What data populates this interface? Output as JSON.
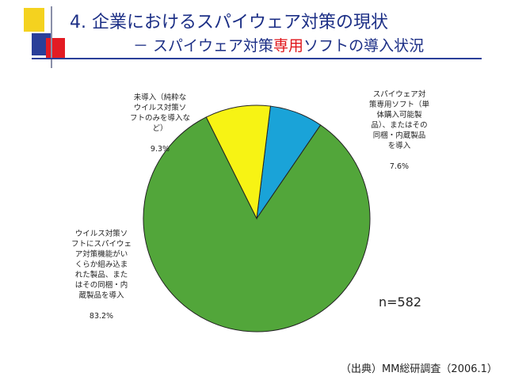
{
  "slide": {
    "title_prefix": "4. ",
    "title": "企業におけるスパイウェア対策の現状",
    "subtitle_prefix": "－ スパイウェア対策",
    "subtitle_highlight": "専用",
    "subtitle_suffix": "ソフトの導入状況",
    "n_label": "n=582",
    "source": "（出典）MM総研調査（2006.1）",
    "colors": {
      "title": "#1c2f86",
      "highlight": "#e0161b",
      "deco_yellow": "#f4d21f",
      "deco_red": "#e31b23",
      "deco_blue": "#2a3f99"
    }
  },
  "chart_data": {
    "type": "pie",
    "title": "",
    "start_angle_deg": 7,
    "slices": [
      {
        "label": "スパイウェア対\n策専用ソフト（単\n体購入可能製\n品）、またはその\n同梱・内蔵製品\nを導入",
        "value_text": "7.6%",
        "value": 7.6,
        "color": "#1aa3d8"
      },
      {
        "label": "ウイルス対策ソ\nフトにスパイウェ\nア対策機能がい\nくらか組み込ま\nれた製品、また\nはその同梱・内\n蔵製品を導入",
        "value_text": "83.2%",
        "value": 83.2,
        "color": "#52a63a"
      },
      {
        "label": "未導入（純粋な\nウイルス対策ソ\nフトのみを導入な\nど）",
        "value_text": "9.3%",
        "value": 9.3,
        "color": "#f7f314"
      }
    ]
  }
}
